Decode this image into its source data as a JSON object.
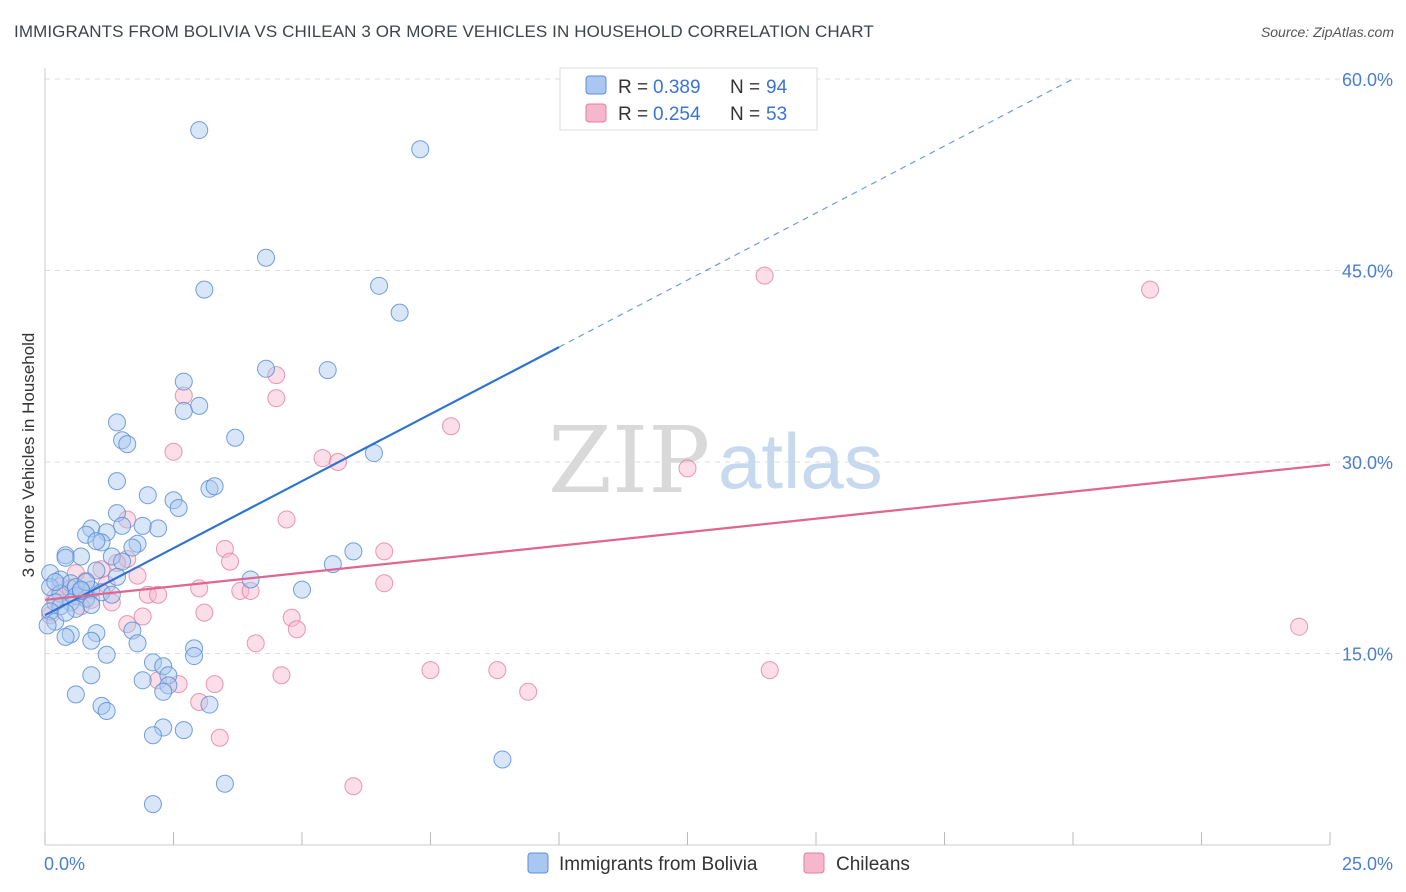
{
  "header": {
    "title": "IMMIGRANTS FROM BOLIVIA VS CHILEAN 3 OR MORE VEHICLES IN HOUSEHOLD CORRELATION CHART",
    "source": "Source: ZipAtlas.com"
  },
  "legend": {
    "series1": {
      "r_label": "R =",
      "r_value": "0.389",
      "n_label": "N =",
      "n_value": "94"
    },
    "series2": {
      "r_label": "R =",
      "r_value": "0.254",
      "n_label": "N =",
      "n_value": "53"
    }
  },
  "watermark": {
    "zip": "ZIP",
    "atlas": "atlas"
  },
  "colors": {
    "bolivia_fill": "#a9c7f0",
    "bolivia_stroke": "#5b8fd6",
    "bolivia_line": "#2f73d0",
    "chile_fill": "#f6b6cb",
    "chile_stroke": "#e27fa1",
    "chile_line": "#e0668f",
    "grid": "#dddddd",
    "tick_text": "#4a7fd0"
  },
  "chart_data": {
    "type": "scatter",
    "title": "IMMIGRANTS FROM BOLIVIA VS CHILEAN 3 OR MORE VEHICLES IN HOUSEHOLD CORRELATION CHART",
    "xlabel": "",
    "ylabel": "3 or more Vehicles in Household",
    "xlim": [
      0,
      25
    ],
    "ylim": [
      0,
      60
    ],
    "x_tick_labels": [
      "0.0%",
      "25.0%"
    ],
    "y_ticks": [
      15,
      30,
      45,
      60
    ],
    "y_tick_labels": [
      "15.0%",
      "30.0%",
      "45.0%",
      "60.0%"
    ],
    "grid": true,
    "legend_placement": "top-center",
    "series": [
      {
        "name": "Immigrants from Bolivia",
        "color": "#a9c7f0",
        "trend": {
          "x": [
            0,
            10
          ],
          "y": [
            18.0,
            39.0
          ],
          "dashed_to": [
            20,
            60
          ]
        },
        "points": [
          [
            3.0,
            56.0
          ],
          [
            7.3,
            54.5
          ],
          [
            4.3,
            46.0
          ],
          [
            3.1,
            43.5
          ],
          [
            6.5,
            43.8
          ],
          [
            6.9,
            41.7
          ],
          [
            4.3,
            37.3
          ],
          [
            5.5,
            37.2
          ],
          [
            2.7,
            36.3
          ],
          [
            3.0,
            34.4
          ],
          [
            2.7,
            34.0
          ],
          [
            1.4,
            33.1
          ],
          [
            3.7,
            31.9
          ],
          [
            1.5,
            31.7
          ],
          [
            1.6,
            31.4
          ],
          [
            6.4,
            30.7
          ],
          [
            1.4,
            28.5
          ],
          [
            3.2,
            27.9
          ],
          [
            3.3,
            28.1
          ],
          [
            2.0,
            27.4
          ],
          [
            2.5,
            27.0
          ],
          [
            2.6,
            26.4
          ],
          [
            1.4,
            26.0
          ],
          [
            1.5,
            25.0
          ],
          [
            2.2,
            24.8
          ],
          [
            0.9,
            24.8
          ],
          [
            1.2,
            24.5
          ],
          [
            0.8,
            24.3
          ],
          [
            1.1,
            23.7
          ],
          [
            1.8,
            23.6
          ],
          [
            1.7,
            23.3
          ],
          [
            0.4,
            22.7
          ],
          [
            0.7,
            22.6
          ],
          [
            1.3,
            22.6
          ],
          [
            0.4,
            22.5
          ],
          [
            1.5,
            22.2
          ],
          [
            6.0,
            23.0
          ],
          [
            5.6,
            22.0
          ],
          [
            0.1,
            21.3
          ],
          [
            1.0,
            21.5
          ],
          [
            1.4,
            21.0
          ],
          [
            0.3,
            20.8
          ],
          [
            0.5,
            20.5
          ],
          [
            4.0,
            20.8
          ],
          [
            5.0,
            20.0
          ],
          [
            0.6,
            20.2
          ],
          [
            0.1,
            20.2
          ],
          [
            0.9,
            20.0
          ],
          [
            1.1,
            19.8
          ],
          [
            0.3,
            19.7
          ],
          [
            0.6,
            19.5
          ],
          [
            0.8,
            19.3
          ],
          [
            0.2,
            19.0
          ],
          [
            0.5,
            19.0
          ],
          [
            0.9,
            18.8
          ],
          [
            0.3,
            18.7
          ],
          [
            0.6,
            18.5
          ],
          [
            0.1,
            18.3
          ],
          [
            0.2,
            17.5
          ],
          [
            0.05,
            17.2
          ],
          [
            1.0,
            16.6
          ],
          [
            0.5,
            16.5
          ],
          [
            1.7,
            16.8
          ],
          [
            0.4,
            16.3
          ],
          [
            0.9,
            16.0
          ],
          [
            1.8,
            15.8
          ],
          [
            1.2,
            14.9
          ],
          [
            2.9,
            15.4
          ],
          [
            2.9,
            14.8
          ],
          [
            2.1,
            14.3
          ],
          [
            2.3,
            14.0
          ],
          [
            0.9,
            13.3
          ],
          [
            2.4,
            13.3
          ],
          [
            1.9,
            12.9
          ],
          [
            2.4,
            12.5
          ],
          [
            0.6,
            11.8
          ],
          [
            1.1,
            10.9
          ],
          [
            1.2,
            10.5
          ],
          [
            3.2,
            11.0
          ],
          [
            2.3,
            9.2
          ],
          [
            2.7,
            9.0
          ],
          [
            2.1,
            8.6
          ],
          [
            8.9,
            6.7
          ],
          [
            3.5,
            4.8
          ],
          [
            2.1,
            3.2
          ],
          [
            0.7,
            19.9
          ],
          [
            1.0,
            23.8
          ],
          [
            1.3,
            19.6
          ],
          [
            0.8,
            20.6
          ],
          [
            0.2,
            20.6
          ],
          [
            0.4,
            18.2
          ],
          [
            0.7,
            20.0
          ],
          [
            1.9,
            25.0
          ],
          [
            2.3,
            12.0
          ]
        ]
      },
      {
        "name": "Chileans",
        "color": "#f6b6cb",
        "trend": {
          "x": [
            0,
            25
          ],
          "y": [
            19.2,
            29.8
          ]
        },
        "points": [
          [
            14.0,
            44.6
          ],
          [
            21.5,
            43.5
          ],
          [
            4.5,
            36.8
          ],
          [
            4.5,
            35.0
          ],
          [
            2.7,
            35.2
          ],
          [
            7.9,
            32.8
          ],
          [
            2.5,
            30.8
          ],
          [
            5.4,
            30.3
          ],
          [
            5.7,
            30.0
          ],
          [
            12.5,
            29.5
          ],
          [
            1.6,
            25.5
          ],
          [
            4.7,
            25.5
          ],
          [
            3.5,
            23.2
          ],
          [
            6.6,
            23.0
          ],
          [
            1.6,
            22.4
          ],
          [
            3.6,
            22.2
          ],
          [
            1.1,
            21.6
          ],
          [
            0.6,
            21.3
          ],
          [
            1.8,
            21.1
          ],
          [
            6.6,
            20.5
          ],
          [
            0.8,
            20.7
          ],
          [
            1.2,
            20.4
          ],
          [
            0.3,
            20.3
          ],
          [
            3.0,
            20.1
          ],
          [
            3.8,
            19.9
          ],
          [
            4.0,
            19.9
          ],
          [
            2.0,
            19.6
          ],
          [
            2.2,
            19.6
          ],
          [
            0.2,
            19.4
          ],
          [
            0.9,
            19.2
          ],
          [
            1.3,
            19.0
          ],
          [
            0.7,
            18.7
          ],
          [
            3.1,
            18.2
          ],
          [
            4.8,
            17.8
          ],
          [
            0.1,
            18.0
          ],
          [
            1.9,
            17.9
          ],
          [
            1.6,
            17.3
          ],
          [
            4.9,
            16.9
          ],
          [
            24.4,
            17.1
          ],
          [
            4.1,
            15.8
          ],
          [
            7.5,
            13.7
          ],
          [
            8.8,
            13.7
          ],
          [
            14.1,
            13.7
          ],
          [
            4.6,
            13.3
          ],
          [
            2.2,
            12.9
          ],
          [
            2.6,
            12.6
          ],
          [
            3.3,
            12.6
          ],
          [
            9.4,
            12.0
          ],
          [
            3.0,
            11.2
          ],
          [
            3.4,
            8.4
          ],
          [
            6.0,
            4.6
          ],
          [
            1.4,
            22.1
          ],
          [
            0.5,
            20.1
          ]
        ]
      }
    ]
  },
  "bottom_legend": {
    "series1": "Immigrants from Bolivia",
    "series2": "Chileans"
  }
}
